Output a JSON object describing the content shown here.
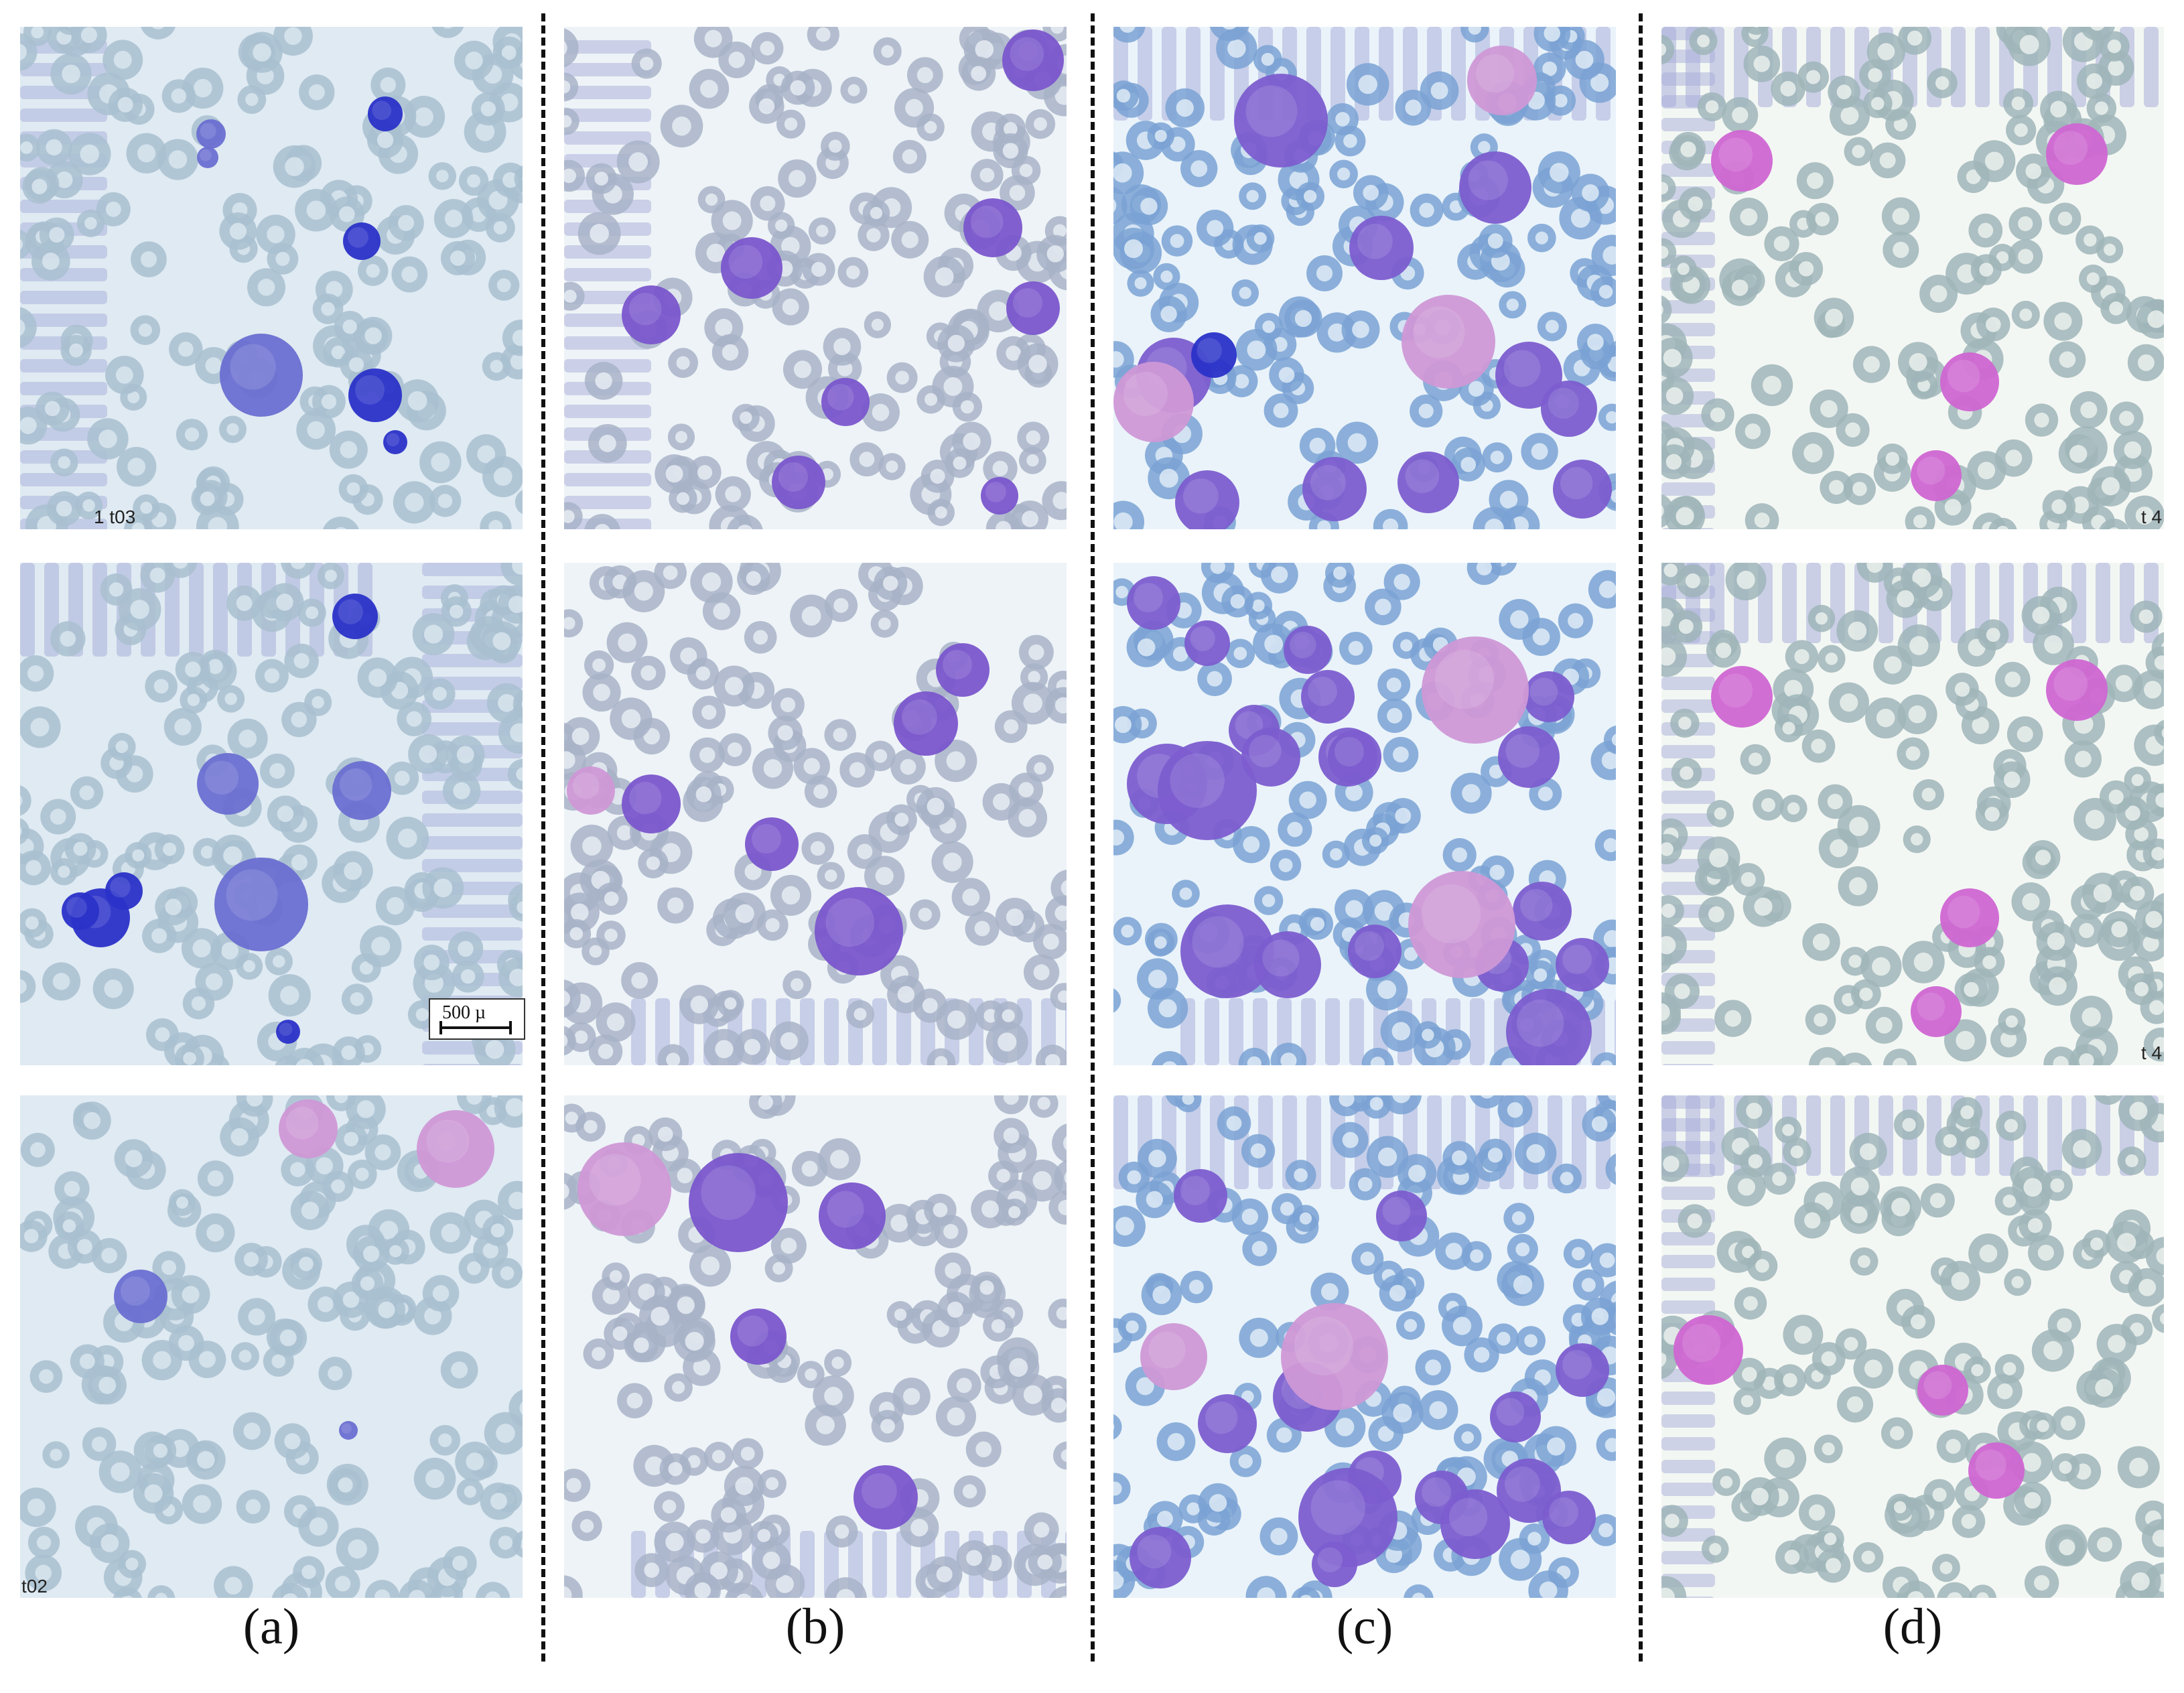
{
  "captions": [
    "(a)",
    "(b)",
    "(c)",
    "(d)"
  ],
  "scale_bar_label": "500 µ",
  "corner_marks": {
    "a1": "1 t03",
    "a3": "t02",
    "d1": "t 4",
    "d2": "t 4"
  },
  "colors": {
    "background_a": "#dfeaf2",
    "background_b": "#eef3f7",
    "background_c": "#eaf3fa",
    "background_d": "#f3f7f3",
    "rbc_a": "#a9bfd0",
    "rbc_b": "#a8b3c8",
    "rbc_c": "#7aa2d3",
    "rbc_d": "#9fb5b8",
    "wbc_a": "#6a6fd1",
    "wbc_dark_a": "#2a32c8",
    "wbc_b": "#7a56cc",
    "wbc_c": "#7c5dcf",
    "wbc_d": "#cf66d2",
    "platelet_pink": "#cf98d6",
    "stripe": "#a8aeda",
    "divider": "#111111",
    "caption": "#111111"
  },
  "panels": [
    {
      "id": "a1",
      "column": "a",
      "row": 1,
      "bg": "background_a",
      "rbc": "rbc_a",
      "wbc": "wbc_a",
      "stripes": "left"
    },
    {
      "id": "a2",
      "column": "a",
      "row": 2,
      "bg": "background_a",
      "rbc": "rbc_a",
      "wbc": "wbc_a",
      "stripes": "top-right"
    },
    {
      "id": "a3",
      "column": "a",
      "row": 3,
      "bg": "background_a",
      "rbc": "rbc_a",
      "wbc": "wbc_a",
      "stripes": "none"
    },
    {
      "id": "b1",
      "column": "b",
      "row": 1,
      "bg": "background_b",
      "rbc": "rbc_b",
      "wbc": "wbc_b",
      "stripes": "left"
    },
    {
      "id": "b2",
      "column": "b",
      "row": 2,
      "bg": "background_b",
      "rbc": "rbc_b",
      "wbc": "wbc_b",
      "stripes": "bottom"
    },
    {
      "id": "b3",
      "column": "b",
      "row": 3,
      "bg": "background_b",
      "rbc": "rbc_b",
      "wbc": "wbc_b",
      "stripes": "bottom"
    },
    {
      "id": "c1",
      "column": "c",
      "row": 1,
      "bg": "background_c",
      "rbc": "rbc_c",
      "wbc": "wbc_c",
      "stripes": "top"
    },
    {
      "id": "c2",
      "column": "c",
      "row": 2,
      "bg": "background_c",
      "rbc": "rbc_c",
      "wbc": "wbc_c",
      "stripes": "bottom"
    },
    {
      "id": "c3",
      "column": "c",
      "row": 3,
      "bg": "background_c",
      "rbc": "rbc_c",
      "wbc": "wbc_c",
      "stripes": "top"
    },
    {
      "id": "d1",
      "column": "d",
      "row": 1,
      "bg": "background_d",
      "rbc": "rbc_d",
      "wbc": "wbc_d",
      "stripes": "top-left"
    },
    {
      "id": "d2",
      "column": "d",
      "row": 2,
      "bg": "background_d",
      "rbc": "rbc_d",
      "wbc": "wbc_d",
      "stripes": "top-left"
    },
    {
      "id": "d3",
      "column": "d",
      "row": 3,
      "bg": "background_d",
      "rbc": "rbc_d",
      "wbc": "wbc_d",
      "stripes": "top-left"
    }
  ]
}
